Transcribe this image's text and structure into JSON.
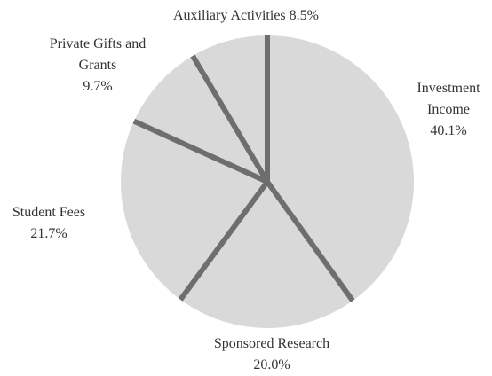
{
  "chart_data": {
    "type": "pie",
    "categories": [
      "Investment Income",
      "Sponsored Research",
      "Student Fees",
      "Private Gifts and Grants",
      "Auxiliary Activities"
    ],
    "values": [
      40.1,
      20.0,
      21.7,
      9.7,
      8.5
    ],
    "value_labels": [
      "40.1%",
      "20.0%",
      "21.7%",
      "9.7%",
      "8.5%"
    ],
    "colors": [
      "#d9d9d9",
      "#d9d9d9",
      "#d9d9d9",
      "#d9d9d9",
      "#d9d9d9"
    ]
  }
}
